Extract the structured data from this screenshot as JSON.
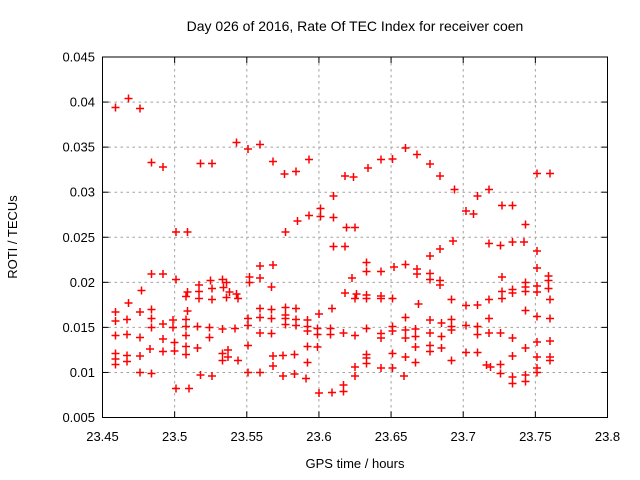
{
  "window": {
    "title": "Day 026 of 2016, Rate Of TEC Index for receiver coen"
  },
  "chart_data": {
    "type": "scatter",
    "title": "Day 026 of 2016, Rate Of TEC Index for receiver coen",
    "xlabel": "GPS time / hours",
    "ylabel": "ROTI / TECUs",
    "xlim": [
      23.45,
      23.8
    ],
    "ylim": [
      0.005,
      0.045
    ],
    "grid": true,
    "legend": "none",
    "xticks": {
      "values": [
        23.45,
        23.5,
        23.55,
        23.6,
        23.65,
        23.7,
        23.75,
        23.8
      ],
      "labels": [
        "23.45",
        "23.5",
        "23.55",
        "23.6",
        "23.65",
        "23.7",
        "23.75",
        "23.8"
      ]
    },
    "yticks": {
      "values": [
        0.005,
        0.01,
        0.015,
        0.02,
        0.025,
        0.03,
        0.035,
        0.04,
        0.045
      ],
      "labels": [
        "0.005",
        "0.01",
        "0.015",
        "0.02",
        "0.025",
        "0.03",
        "0.035",
        "0.04",
        "0.045"
      ]
    },
    "colors": {
      "marker": "#ff0000",
      "grid": "#a0a0a0",
      "axis": "#000000",
      "background": "#ffffff",
      "text": "#000000"
    },
    "marker": {
      "shape": "plus",
      "size": 8
    },
    "series": [
      {
        "name": "ROTI",
        "points": [
          [
            23.468,
            0.0404
          ],
          [
            23.459,
            0.0394
          ],
          [
            23.476,
            0.0393
          ],
          [
            23.484,
            0.0333
          ],
          [
            23.492,
            0.0328
          ],
          [
            23.518,
            0.0332
          ],
          [
            23.526,
            0.0332
          ],
          [
            23.543,
            0.0355
          ],
          [
            23.551,
            0.0348
          ],
          [
            23.559,
            0.0353
          ],
          [
            23.568,
            0.0334
          ],
          [
            23.576,
            0.032
          ],
          [
            23.584,
            0.0323
          ],
          [
            23.593,
            0.0336
          ],
          [
            23.618,
            0.0318
          ],
          [
            23.624,
            0.0317
          ],
          [
            23.634,
            0.0327
          ],
          [
            23.643,
            0.0336
          ],
          [
            23.651,
            0.0337
          ],
          [
            23.66,
            0.0349
          ],
          [
            23.668,
            0.0342
          ],
          [
            23.677,
            0.0331
          ],
          [
            23.684,
            0.0318
          ],
          [
            23.751,
            0.0321
          ],
          [
            23.76,
            0.0321
          ],
          [
            23.501,
            0.0256
          ],
          [
            23.509,
            0.0256
          ],
          [
            23.484,
            0.0209
          ],
          [
            23.492,
            0.0209
          ],
          [
            23.501,
            0.0203
          ],
          [
            23.477,
            0.0191
          ],
          [
            23.509,
            0.0189
          ],
          [
            23.517,
            0.0197
          ],
          [
            23.517,
            0.019
          ],
          [
            23.525,
            0.0202
          ],
          [
            23.526,
            0.0193
          ],
          [
            23.533,
            0.0203
          ],
          [
            23.534,
            0.0194
          ],
          [
            23.61,
            0.0296
          ],
          [
            23.601,
            0.0282
          ],
          [
            23.601,
            0.0273
          ],
          [
            23.593,
            0.0274
          ],
          [
            23.585,
            0.0268
          ],
          [
            23.61,
            0.0272
          ],
          [
            23.619,
            0.0261
          ],
          [
            23.577,
            0.0256
          ],
          [
            23.61,
            0.024
          ],
          [
            23.618,
            0.024
          ],
          [
            23.559,
            0.0218
          ],
          [
            23.568,
            0.0219
          ],
          [
            23.559,
            0.0205
          ],
          [
            23.552,
            0.0206
          ],
          [
            23.552,
            0.02
          ],
          [
            23.536,
            0.02
          ],
          [
            23.538,
            0.0189
          ],
          [
            23.543,
            0.0187
          ],
          [
            23.567,
            0.0195
          ],
          [
            23.618,
            0.0188
          ],
          [
            23.694,
            0.0303
          ],
          [
            23.71,
            0.0296
          ],
          [
            23.702,
            0.0279
          ],
          [
            23.707,
            0.0276
          ],
          [
            23.625,
            0.0261
          ],
          [
            23.693,
            0.0246
          ],
          [
            23.684,
            0.0237
          ],
          [
            23.677,
            0.0229
          ],
          [
            23.633,
            0.0222
          ],
          [
            23.633,
            0.0212
          ],
          [
            23.643,
            0.0212
          ],
          [
            23.652,
            0.0217
          ],
          [
            23.66,
            0.022
          ],
          [
            23.668,
            0.0215
          ],
          [
            23.668,
            0.0209
          ],
          [
            23.677,
            0.021
          ],
          [
            23.677,
            0.0203
          ],
          [
            23.684,
            0.0202
          ],
          [
            23.684,
            0.0197
          ],
          [
            23.623,
            0.0205
          ],
          [
            23.626,
            0.0187
          ],
          [
            23.633,
            0.0186
          ],
          [
            23.643,
            0.0185
          ],
          [
            23.702,
            0.0174
          ],
          [
            23.718,
            0.0303
          ],
          [
            23.727,
            0.0285
          ],
          [
            23.734,
            0.0285
          ],
          [
            23.743,
            0.0264
          ],
          [
            23.718,
            0.0243
          ],
          [
            23.726,
            0.0241
          ],
          [
            23.734,
            0.0245
          ],
          [
            23.742,
            0.0245
          ],
          [
            23.751,
            0.0235
          ],
          [
            23.751,
            0.0216
          ],
          [
            23.727,
            0.0206
          ],
          [
            23.759,
            0.0207
          ],
          [
            23.759,
            0.0202
          ],
          [
            23.743,
            0.02
          ],
          [
            23.743,
            0.0195
          ],
          [
            23.743,
            0.019
          ],
          [
            23.751,
            0.0196
          ],
          [
            23.751,
            0.0189
          ],
          [
            23.759,
            0.0193
          ],
          [
            23.727,
            0.019
          ],
          [
            23.734,
            0.0192
          ],
          [
            23.734,
            0.0188
          ],
          [
            23.468,
            0.0177
          ],
          [
            23.508,
            0.0184
          ],
          [
            23.517,
            0.0182
          ],
          [
            23.526,
            0.0181
          ],
          [
            23.459,
            0.0167
          ],
          [
            23.476,
            0.0167
          ],
          [
            23.484,
            0.017
          ],
          [
            23.509,
            0.0168
          ],
          [
            23.459,
            0.0157
          ],
          [
            23.467,
            0.0159
          ],
          [
            23.484,
            0.016
          ],
          [
            23.492,
            0.0154
          ],
          [
            23.484,
            0.015
          ],
          [
            23.499,
            0.0158
          ],
          [
            23.499,
            0.015
          ],
          [
            23.508,
            0.0159
          ],
          [
            23.508,
            0.0151
          ],
          [
            23.516,
            0.0151
          ],
          [
            23.524,
            0.015
          ],
          [
            23.533,
            0.0148
          ],
          [
            23.459,
            0.0141
          ],
          [
            23.467,
            0.0142
          ],
          [
            23.476,
            0.0139
          ],
          [
            23.492,
            0.0137
          ],
          [
            23.5,
            0.0133
          ],
          [
            23.508,
            0.0141
          ],
          [
            23.524,
            0.0139
          ],
          [
            23.483,
            0.0126
          ],
          [
            23.492,
            0.0123
          ],
          [
            23.5,
            0.0124
          ],
          [
            23.508,
            0.0129
          ],
          [
            23.516,
            0.0127
          ],
          [
            23.459,
            0.0121
          ],
          [
            23.459,
            0.0115
          ],
          [
            23.467,
            0.0119
          ],
          [
            23.476,
            0.0118
          ],
          [
            23.467,
            0.0112
          ],
          [
            23.459,
            0.0109
          ],
          [
            23.508,
            0.012
          ],
          [
            23.533,
            0.0121
          ],
          [
            23.533,
            0.0113
          ],
          [
            23.476,
            0.01
          ],
          [
            23.484,
            0.0099
          ],
          [
            23.518,
            0.0097
          ],
          [
            23.526,
            0.0096
          ],
          [
            23.501,
            0.0082
          ],
          [
            23.51,
            0.0082
          ],
          [
            23.536,
            0.0183
          ],
          [
            23.544,
            0.0182
          ],
          [
            23.559,
            0.0171
          ],
          [
            23.567,
            0.017
          ],
          [
            23.577,
            0.0172
          ],
          [
            23.577,
            0.0164
          ],
          [
            23.584,
            0.0171
          ],
          [
            23.551,
            0.016
          ],
          [
            23.551,
            0.0152
          ],
          [
            23.559,
            0.0161
          ],
          [
            23.567,
            0.016
          ],
          [
            23.577,
            0.016
          ],
          [
            23.577,
            0.0153
          ],
          [
            23.584,
            0.0159
          ],
          [
            23.584,
            0.0152
          ],
          [
            23.592,
            0.0158
          ],
          [
            23.592,
            0.0151
          ],
          [
            23.6,
            0.0165
          ],
          [
            23.609,
            0.0171
          ],
          [
            23.542,
            0.0149
          ],
          [
            23.559,
            0.0144
          ],
          [
            23.567,
            0.0143
          ],
          [
            23.592,
            0.0146
          ],
          [
            23.599,
            0.0149
          ],
          [
            23.599,
            0.0142
          ],
          [
            23.608,
            0.0149
          ],
          [
            23.608,
            0.0142
          ],
          [
            23.617,
            0.0144
          ],
          [
            23.551,
            0.013
          ],
          [
            23.537,
            0.0125
          ],
          [
            23.537,
            0.0117
          ],
          [
            23.544,
            0.0113
          ],
          [
            23.568,
            0.0118
          ],
          [
            23.568,
            0.0107
          ],
          [
            23.575,
            0.0119
          ],
          [
            23.583,
            0.012
          ],
          [
            23.592,
            0.0129
          ],
          [
            23.592,
            0.0111
          ],
          [
            23.599,
            0.0128
          ],
          [
            23.551,
            0.01
          ],
          [
            23.559,
            0.01
          ],
          [
            23.575,
            0.0096
          ],
          [
            23.583,
            0.0098
          ],
          [
            23.591,
            0.0093
          ],
          [
            23.6,
            0.0077
          ],
          [
            23.609,
            0.0078
          ],
          [
            23.617,
            0.0086
          ],
          [
            23.617,
            0.0079
          ],
          [
            23.625,
            0.0182
          ],
          [
            23.633,
            0.0182
          ],
          [
            23.643,
            0.0182
          ],
          [
            23.651,
            0.0182
          ],
          [
            23.669,
            0.0176
          ],
          [
            23.692,
            0.0181
          ],
          [
            23.71,
            0.0175
          ],
          [
            23.66,
            0.0161
          ],
          [
            23.633,
            0.0149
          ],
          [
            23.625,
            0.0141
          ],
          [
            23.643,
            0.0143
          ],
          [
            23.643,
            0.0138
          ],
          [
            23.651,
            0.0151
          ],
          [
            23.651,
            0.0146
          ],
          [
            23.66,
            0.0147
          ],
          [
            23.66,
            0.0138
          ],
          [
            23.667,
            0.0148
          ],
          [
            23.667,
            0.014
          ],
          [
            23.677,
            0.0158
          ],
          [
            23.677,
            0.0144
          ],
          [
            23.685,
            0.0155
          ],
          [
            23.685,
            0.014
          ],
          [
            23.692,
            0.0159
          ],
          [
            23.692,
            0.0151
          ],
          [
            23.692,
            0.0147
          ],
          [
            23.702,
            0.0152
          ],
          [
            23.71,
            0.0151
          ],
          [
            23.71,
            0.0142
          ],
          [
            23.667,
            0.0128
          ],
          [
            23.677,
            0.013
          ],
          [
            23.677,
            0.0123
          ],
          [
            23.685,
            0.0127
          ],
          [
            23.651,
            0.0121
          ],
          [
            23.66,
            0.0117
          ],
          [
            23.667,
            0.0111
          ],
          [
            23.633,
            0.012
          ],
          [
            23.633,
            0.0116
          ],
          [
            23.633,
            0.011
          ],
          [
            23.625,
            0.0106
          ],
          [
            23.643,
            0.0105
          ],
          [
            23.651,
            0.0105
          ],
          [
            23.625,
            0.0096
          ],
          [
            23.659,
            0.0096
          ],
          [
            23.692,
            0.0113
          ],
          [
            23.702,
            0.0122
          ],
          [
            23.71,
            0.0122
          ],
          [
            23.718,
            0.0181
          ],
          [
            23.727,
            0.0182
          ],
          [
            23.76,
            0.0181
          ],
          [
            23.743,
            0.0169
          ],
          [
            23.718,
            0.016
          ],
          [
            23.751,
            0.0162
          ],
          [
            23.76,
            0.016
          ],
          [
            23.718,
            0.0144
          ],
          [
            23.726,
            0.0144
          ],
          [
            23.734,
            0.0138
          ],
          [
            23.743,
            0.0127
          ],
          [
            23.751,
            0.0134
          ],
          [
            23.76,
            0.0135
          ],
          [
            23.734,
            0.0118
          ],
          [
            23.751,
            0.0117
          ],
          [
            23.76,
            0.0117
          ],
          [
            23.76,
            0.0113
          ],
          [
            23.716,
            0.0108
          ],
          [
            23.719,
            0.0106
          ],
          [
            23.726,
            0.0109
          ],
          [
            23.726,
            0.0099
          ],
          [
            23.734,
            0.0095
          ],
          [
            23.743,
            0.0097
          ],
          [
            23.751,
            0.0105
          ],
          [
            23.751,
            0.01
          ],
          [
            23.734,
            0.0088
          ],
          [
            23.743,
            0.009
          ]
        ]
      }
    ]
  }
}
